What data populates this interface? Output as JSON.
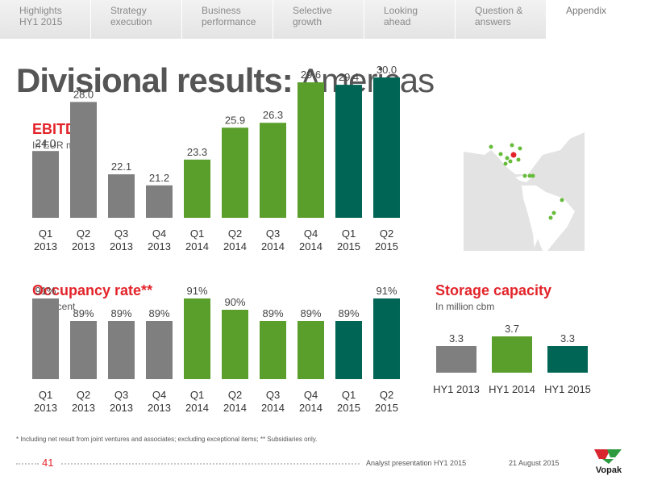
{
  "nav": {
    "tabs": [
      {
        "label": "Highlights\nHY1 2015",
        "name": "tab-highlights"
      },
      {
        "label": "Strategy\nexecution",
        "name": "tab-strategy"
      },
      {
        "label": "Business\nperformance",
        "name": "tab-business"
      },
      {
        "label": "Selective\ngrowth",
        "name": "tab-growth"
      },
      {
        "label": "Looking\nahead",
        "name": "tab-looking-ahead"
      },
      {
        "label": "Question &\nanswers",
        "name": "tab-qa"
      },
      {
        "label": "Appendix",
        "name": "tab-appendix"
      }
    ],
    "active": 6
  },
  "page": {
    "title_bold": "Divisional results:",
    "title_light": " Americas"
  },
  "colors": {
    "grey": "#7f7f7f",
    "green": "#5a9e2b",
    "teal": "#006554",
    "accent_red": "#e2242a"
  },
  "chart_data": [
    {
      "type": "bar",
      "title": "EBITDA*",
      "subtitle": "In EUR million",
      "categories": [
        "Q1\n2013",
        "Q2\n2013",
        "Q3\n2013",
        "Q4\n2013",
        "Q1\n2014",
        "Q2\n2014",
        "Q3\n2014",
        "Q4\n2014",
        "Q1\n2015",
        "Q2\n2015"
      ],
      "values": [
        24.0,
        28.0,
        22.1,
        21.2,
        23.3,
        25.9,
        26.3,
        29.6,
        29.4,
        30.0
      ],
      "labels": [
        "24.0",
        "28.0",
        "22.1",
        "21.2",
        "23.3",
        "25.9",
        "26.3",
        "29.6",
        "29.4",
        "30.0"
      ],
      "bar_colors": [
        "grey",
        "grey",
        "grey",
        "grey",
        "green",
        "green",
        "green",
        "green",
        "teal",
        "teal"
      ]
    },
    {
      "type": "bar",
      "title": "Occupancy rate**",
      "subtitle": "In percent",
      "categories": [
        "Q1\n2013",
        "Q2\n2013",
        "Q3\n2013",
        "Q4\n2013",
        "Q1\n2014",
        "Q2\n2014",
        "Q3\n2014",
        "Q4\n2014",
        "Q1\n2015",
        "Q2\n2015"
      ],
      "values": [
        91,
        89,
        89,
        89,
        91,
        90,
        89,
        89,
        89,
        91
      ],
      "labels": [
        "91%",
        "89%",
        "89%",
        "89%",
        "91%",
        "90%",
        "89%",
        "89%",
        "89%",
        "91%"
      ],
      "bar_colors": [
        "grey",
        "grey",
        "grey",
        "grey",
        "green",
        "green",
        "green",
        "green",
        "teal",
        "teal"
      ]
    },
    {
      "type": "bar",
      "title": "Storage capacity",
      "subtitle": "In million cbm",
      "categories": [
        "HY1 2013",
        "HY1 2014",
        "HY1 2015"
      ],
      "values": [
        3.3,
        3.7,
        3.3
      ],
      "labels": [
        "3.3",
        "3.7",
        "3.3"
      ],
      "bar_colors": [
        "grey",
        "green",
        "teal"
      ]
    }
  ],
  "footer": {
    "footnote": "* Including net result from joint ventures and associates; excluding exceptional items; ** Subsidiaries only.",
    "page_number": "41",
    "presentation": "Analyst presentation HY1 2015",
    "date": "21 August 2015",
    "logo_text": "Vopak"
  }
}
